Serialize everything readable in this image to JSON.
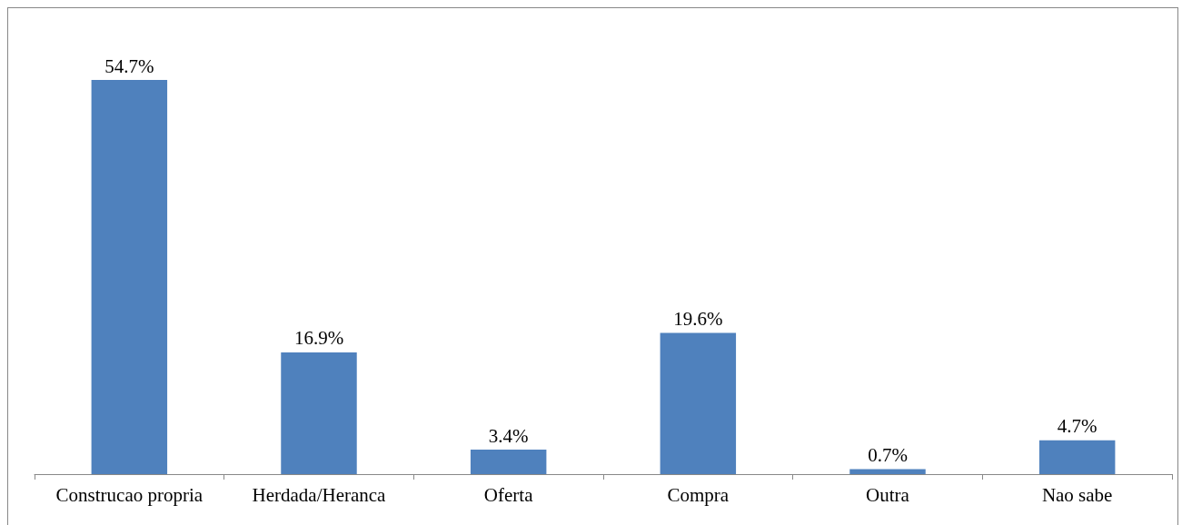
{
  "chart_data": {
    "type": "bar",
    "categories": [
      "Construcao propria",
      "Herdada/Heranca",
      "Oferta",
      "Compra",
      "Outra",
      "Nao sabe"
    ],
    "values": [
      54.7,
      16.9,
      3.4,
      19.6,
      0.7,
      4.7
    ],
    "value_labels": [
      "54.7%",
      "16.9%",
      "3.4%",
      "19.6%",
      "0.7%",
      "4.7%"
    ],
    "color": "#4f81bd"
  }
}
